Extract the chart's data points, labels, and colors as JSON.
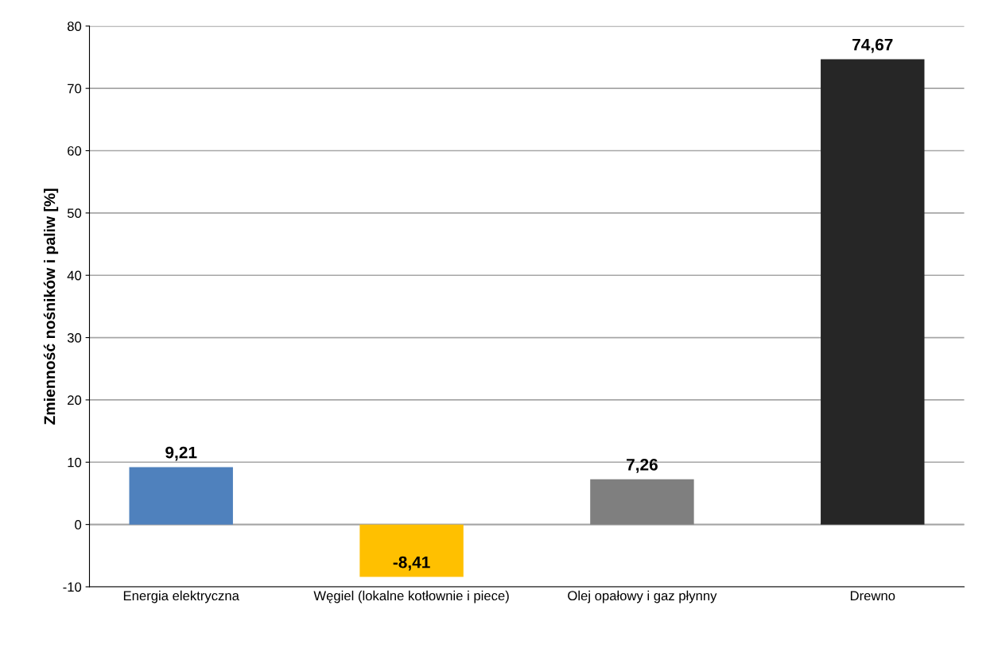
{
  "chart_data": {
    "type": "bar",
    "ylabel": "Zmienność nośników i paliw [%]",
    "categories": [
      "Energia elektryczna",
      "Węgiel (lokalne kotłownie i piece)",
      "Olej opałowy i gaz płynny",
      "Drewno"
    ],
    "values": [
      9.21,
      -8.41,
      7.26,
      74.67
    ],
    "colors": [
      "#4f81bd",
      "#ffc000",
      "#7f7f7f",
      "#262626"
    ],
    "value_labels": [
      "9,21",
      "-8,41",
      "7,26",
      "74,67"
    ],
    "ylim": [
      -10,
      80
    ],
    "yticks": [
      -10,
      0,
      10,
      20,
      30,
      40,
      50,
      60,
      70,
      80
    ],
    "grid": "y",
    "legend": false
  }
}
